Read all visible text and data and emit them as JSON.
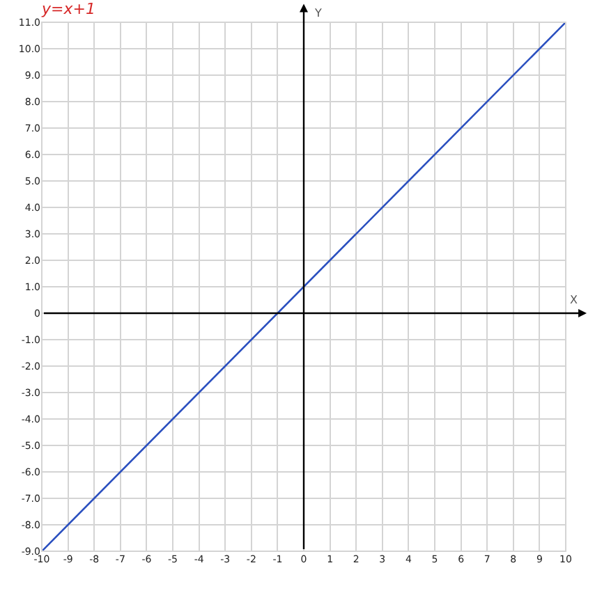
{
  "chart_data": {
    "type": "line",
    "title": "y=x+1",
    "xlabel": "X",
    "ylabel": "Y",
    "x": [
      -10,
      10
    ],
    "series": [
      {
        "color": "#2a4fbf",
        "values": [
          -9,
          11
        ]
      }
    ],
    "xlim": [
      -10,
      10
    ],
    "xticks": [
      -10,
      -9,
      -8,
      -7,
      -6,
      -5,
      -4,
      -3,
      -2,
      -1,
      0,
      1,
      2,
      3,
      4,
      5,
      6,
      7,
      8,
      9,
      10
    ],
    "ylim": [
      -9,
      11
    ],
    "yticks": [
      {
        "value": -9,
        "label": "-9.0"
      },
      {
        "value": -8,
        "label": "-8.0"
      },
      {
        "value": -7,
        "label": "-7.0"
      },
      {
        "value": -6,
        "label": "-6.0"
      },
      {
        "value": -5,
        "label": "-5.0"
      },
      {
        "value": -4,
        "label": "-4.0"
      },
      {
        "value": -3,
        "label": "-3.0"
      },
      {
        "value": -2,
        "label": "-2.0"
      },
      {
        "value": -1,
        "label": "-1.0"
      },
      {
        "value": 0,
        "label": "0"
      },
      {
        "value": 1,
        "label": "1.0"
      },
      {
        "value": 2,
        "label": "2.0"
      },
      {
        "value": 3,
        "label": "3.0"
      },
      {
        "value": 4,
        "label": "4.0"
      },
      {
        "value": 5,
        "label": "5.0"
      },
      {
        "value": 6,
        "label": "6.0"
      },
      {
        "value": 7,
        "label": "7.0"
      },
      {
        "value": 8,
        "label": "8.0"
      },
      {
        "value": 9,
        "label": "9.0"
      },
      {
        "value": 10,
        "label": "10.0"
      },
      {
        "value": 11,
        "label": "11.0"
      }
    ],
    "grid": true,
    "legend": false,
    "marker": "none",
    "line_style": "solid"
  }
}
